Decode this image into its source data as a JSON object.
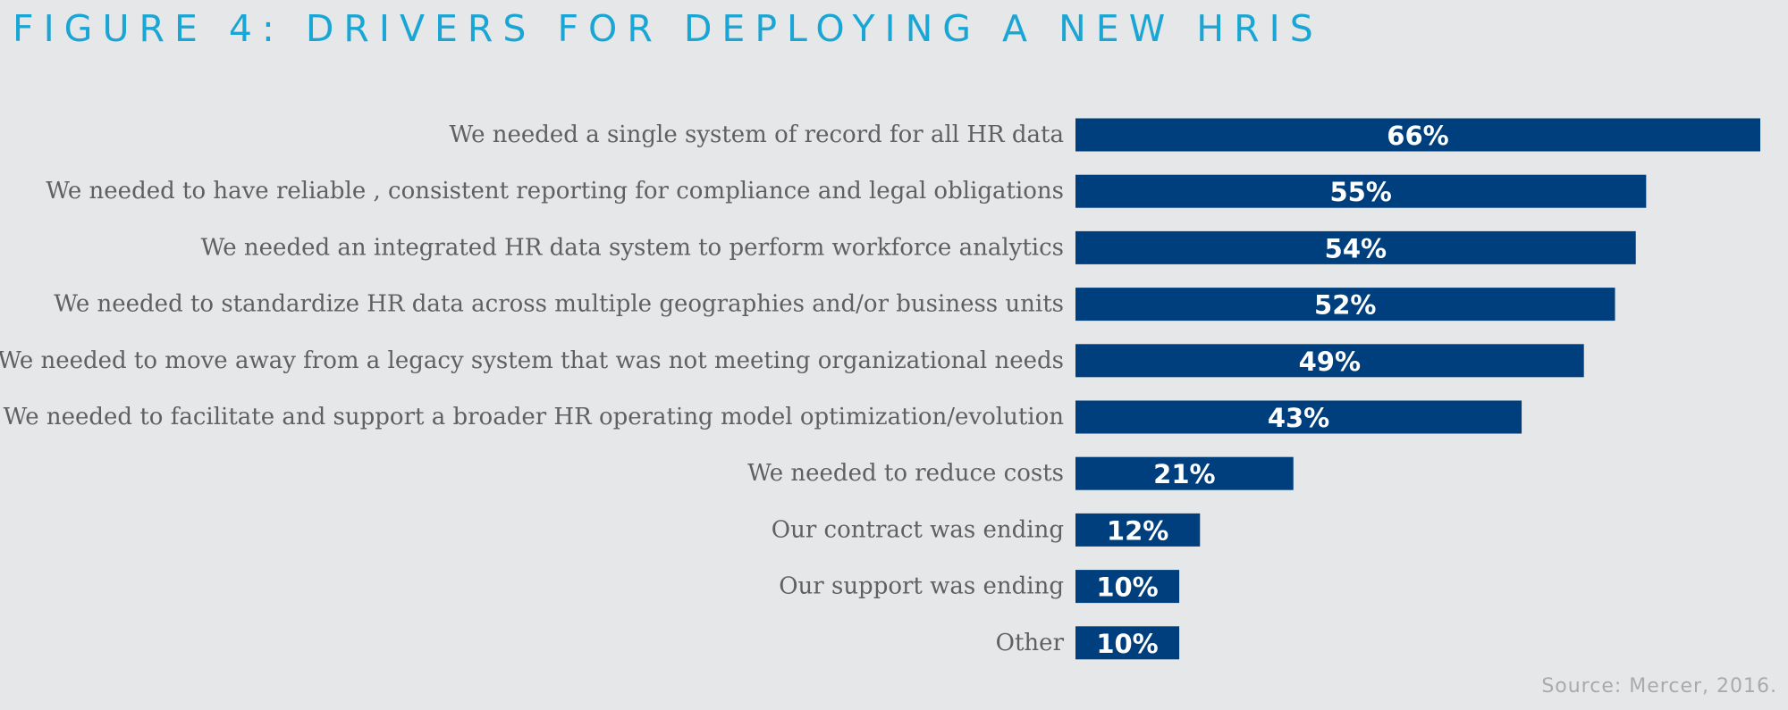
{
  "title": "FIGURE 4: DRIVERS FOR DEPLOYING A NEW HRIS",
  "source": "Source: Mercer, 2016.",
  "colors": {
    "background": "#e6e7e9",
    "title": "#1aa6d4",
    "bar": "#003f7d",
    "label": "#5f6062",
    "source": "#a9aaac"
  },
  "chart_data": {
    "type": "bar",
    "orientation": "horizontal",
    "categories": [
      "We needed a single system of record for all HR data",
      "We needed to have reliable , consistent reporting for compliance and legal obligations",
      "We needed an integrated HR data system to perform workforce analytics",
      "We needed to standardize HR data across multiple geographies and/or business units",
      "We needed to move away from a legacy system that was not meeting organizational needs",
      "We needed to facilitate and support a broader HR operating model optimization/evolution",
      "We needed to reduce costs",
      "Our contract was ending",
      "Our support was ending",
      "Other"
    ],
    "values": [
      66,
      55,
      54,
      52,
      49,
      43,
      21,
      12,
      10,
      10
    ],
    "value_labels": [
      "66%",
      "55%",
      "54%",
      "52%",
      "49%",
      "43%",
      "21%",
      "12%",
      "10%",
      "10%"
    ],
    "unit": "%",
    "xlim": [
      0,
      66
    ],
    "grid": false,
    "legend": "none"
  }
}
